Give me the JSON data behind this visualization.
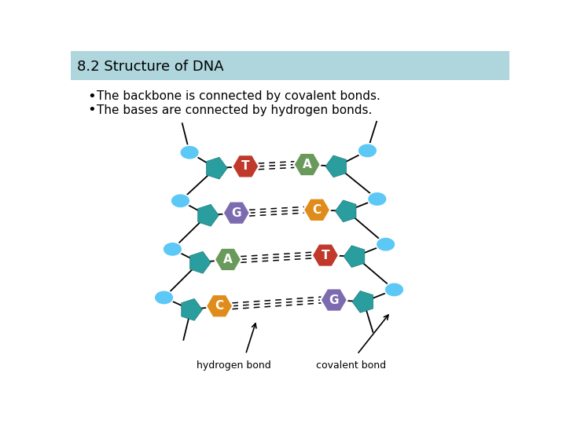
{
  "title": "8.2 Structure of DNA",
  "title_bg": "#aed6dc",
  "bullet1": "The backbone is connected by covalent bonds.",
  "bullet2": "The bases are connected by hydrogen bonds.",
  "bg_color": "#ffffff",
  "text_color": "#000000",
  "backbone_color": "#2a9d9f",
  "sphere_color": "#5bc8f5",
  "base_pairs": [
    {
      "left_label": "T",
      "left_color": "#c0392b",
      "right_label": "A",
      "right_color": "#6a9a5b"
    },
    {
      "left_label": "G",
      "left_color": "#7d6bb0",
      "right_label": "C",
      "right_color": "#e08c1a"
    },
    {
      "left_label": "A",
      "left_color": "#6a9a5b",
      "right_label": "T",
      "right_color": "#c0392b"
    },
    {
      "left_label": "C",
      "left_color": "#e08c1a",
      "right_label": "G",
      "right_color": "#7d6bb0"
    }
  ],
  "label_hydrogen": "hydrogen bond",
  "label_covalent": "covalent bond"
}
